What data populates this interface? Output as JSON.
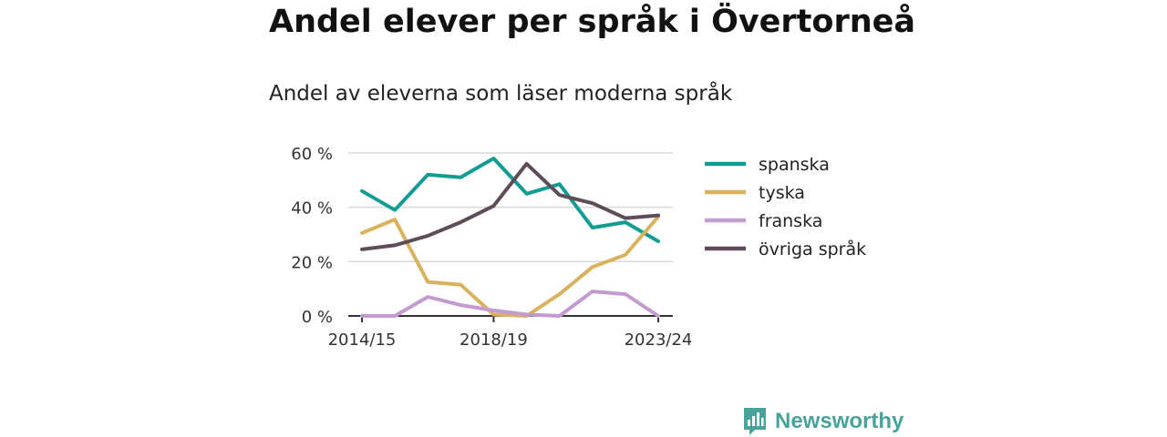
{
  "header": {
    "title": "Andel elever per språk i Övertorneå",
    "subtitle": "Andel av eleverna som läser moderna språk"
  },
  "chart_data": {
    "type": "line",
    "x": [
      "2014/15",
      "2015/16",
      "2016/17",
      "2017/18",
      "2018/19",
      "2019/20",
      "2020/21",
      "2021/22",
      "2022/23",
      "2023/24"
    ],
    "x_tick_labels": [
      "2014/15",
      "2018/19",
      "2023/24"
    ],
    "y_ticks": [
      0,
      20,
      40,
      60
    ],
    "y_tick_labels": [
      "0 %",
      "20 %",
      "40 %",
      "60 %"
    ],
    "ylim": [
      0,
      60
    ],
    "grid": true,
    "legend_position": "right",
    "series": [
      {
        "name": "spanska",
        "color": "#139c94",
        "values": [
          46,
          39,
          52,
          51,
          58,
          45,
          48.5,
          32.5,
          34.5,
          27.5
        ]
      },
      {
        "name": "tyska",
        "color": "#d9b25e",
        "values": [
          30.5,
          35.5,
          12.5,
          11.5,
          0.5,
          0,
          8,
          18,
          22.5,
          36.5
        ]
      },
      {
        "name": "franska",
        "color": "#c49bd0",
        "values": [
          0,
          0,
          7,
          4,
          2,
          0.5,
          0,
          9,
          8,
          0
        ]
      },
      {
        "name": "övriga språk",
        "color": "#5e4d59",
        "values": [
          24.5,
          26,
          29.5,
          34.5,
          40.5,
          56,
          44.5,
          41.5,
          36,
          37
        ]
      }
    ]
  },
  "branding": {
    "name": "Newsworthy",
    "icon": "newsworthy-logo-icon",
    "color": "#4aa39b"
  }
}
